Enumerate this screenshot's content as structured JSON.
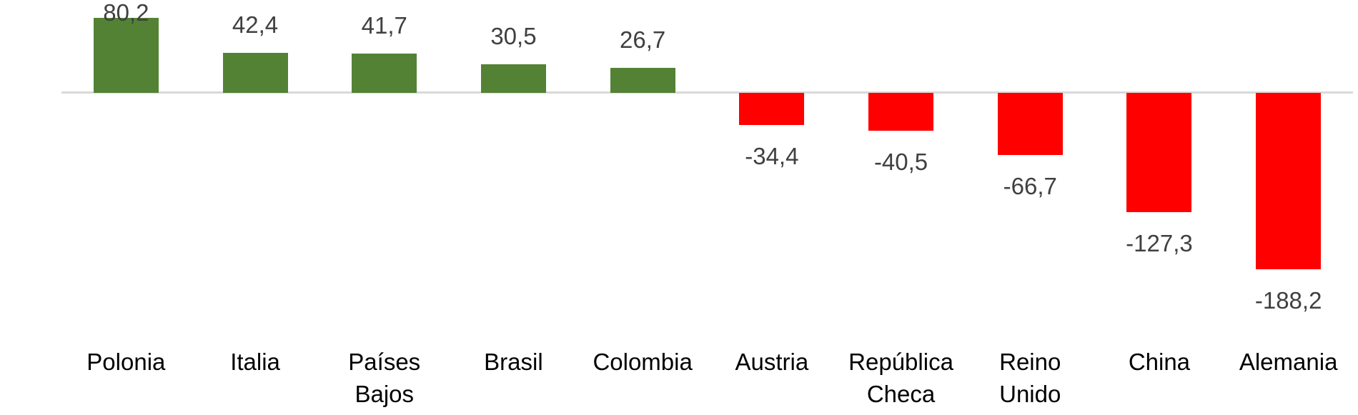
{
  "chart_data": {
    "type": "bar",
    "categories": [
      "Polonia",
      "Italia",
      "Países\nBajos",
      "Brasil",
      "Colombia",
      "Austria",
      "República\nCheca",
      "Reino\nUnido",
      "China",
      "Alemania"
    ],
    "values": [
      80.2,
      42.4,
      41.7,
      30.5,
      26.7,
      -34.4,
      -40.5,
      -66.7,
      -127.3,
      -188.2
    ],
    "value_labels": [
      "80,2",
      "42,4",
      "41,7",
      "30,5",
      "26,7",
      "-34,4",
      "-40,5",
      "-66,7",
      "-127,3",
      "-188,2"
    ],
    "title": "",
    "xlabel": "",
    "ylabel": "",
    "ylim": [
      -200,
      90
    ],
    "grid": false,
    "legend": false,
    "number_format": "decimal-comma",
    "baseline": 0,
    "colors": {
      "positive_bar": "#538235",
      "negative_bar": "#FF0000",
      "axis_line": "#D9D9D9",
      "value_label": "#404040",
      "category_label": "#000000",
      "background": "#FFFFFF"
    }
  }
}
